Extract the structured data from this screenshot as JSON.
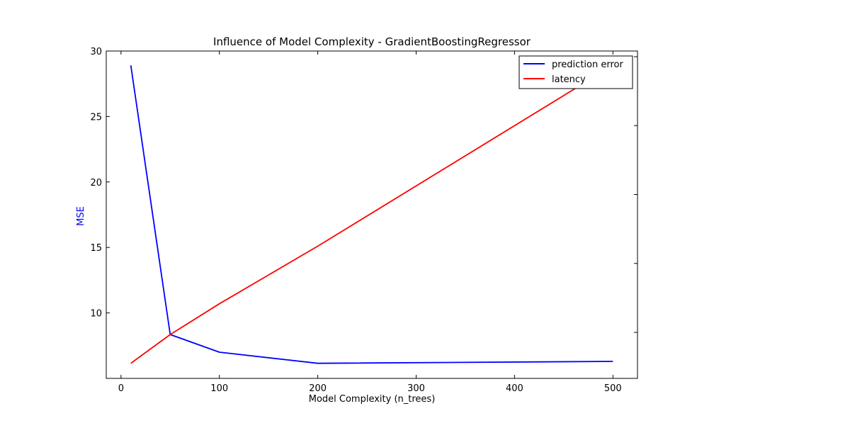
{
  "chart_data": {
    "type": "line",
    "title": "Influence of Model Complexity - GradientBoostingRegressor",
    "xlabel": "Model Complexity (n_trees)",
    "ylabel": "MSE",
    "xlim": [
      -15,
      525
    ],
    "ylim": [
      5.0,
      30.0
    ],
    "xticks": [
      0,
      100,
      200,
      300,
      400,
      500
    ],
    "yticks": [
      10,
      15,
      20,
      25,
      30
    ],
    "grid": false,
    "legend_position": "top-right",
    "colors": {
      "ylabel": "#0000ff",
      "axes": "#000000"
    },
    "series": [
      {
        "name": "prediction error",
        "color": "#0000ff",
        "axis": "left",
        "x": [
          10,
          50,
          100,
          200,
          500
        ],
        "y": [
          28.9,
          8.35,
          7.0,
          6.15,
          6.3
        ]
      },
      {
        "name": "latency",
        "color": "#ff0000",
        "axis": "right",
        "x": [
          10,
          50,
          100,
          200,
          500
        ],
        "y": [
          6.15,
          8.35,
          10.7,
          15.1,
          28.9
        ]
      }
    ]
  }
}
